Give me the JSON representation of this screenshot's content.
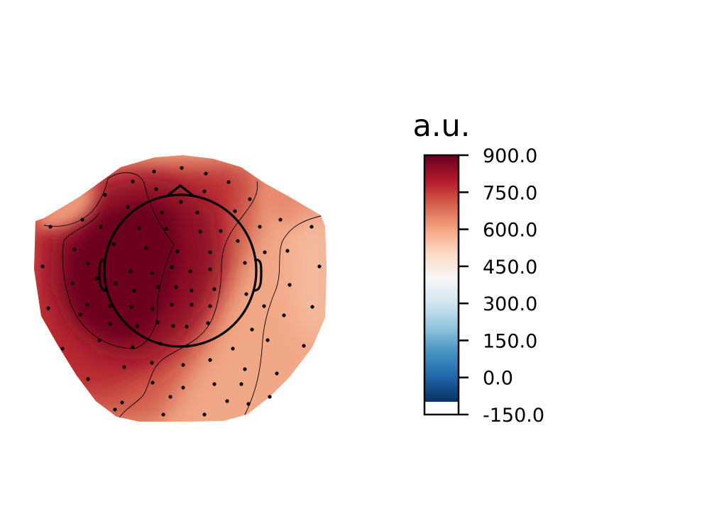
{
  "chart_data": {
    "type": "heatmap",
    "subtype": "eeg-topomap",
    "colormap": "RdBu_r",
    "colorbar": {
      "title": "a.u.",
      "ticks": [
        "900.0",
        "750.0",
        "600.0",
        "450.0",
        "300.0",
        "150.0",
        "0.0",
        "-150.0"
      ],
      "tick_values": [
        900,
        750,
        600,
        450,
        300,
        150,
        0,
        -150
      ],
      "range": [
        -150,
        900
      ],
      "colormap_range": [
        -100,
        900
      ]
    },
    "field": {
      "description": "scalp map: high values (~850-900) over left/central scalp, decreasing to ~550-650 toward right and posterior-right",
      "max_region": "left-central",
      "min_region": "right-posterior",
      "approx_max": 900,
      "approx_min": 560,
      "contour_levels": [
        650,
        800
      ]
    },
    "sensor_count": 102
  },
  "colors": {
    "darkest": "#67001f",
    "dark_red": "#b2182b",
    "salmon": "#f4a582",
    "white": "#f7f7f7",
    "light_blue": "#92c5de",
    "blue": "#2166ac",
    "navy": "#053061",
    "outline": "#000000"
  }
}
